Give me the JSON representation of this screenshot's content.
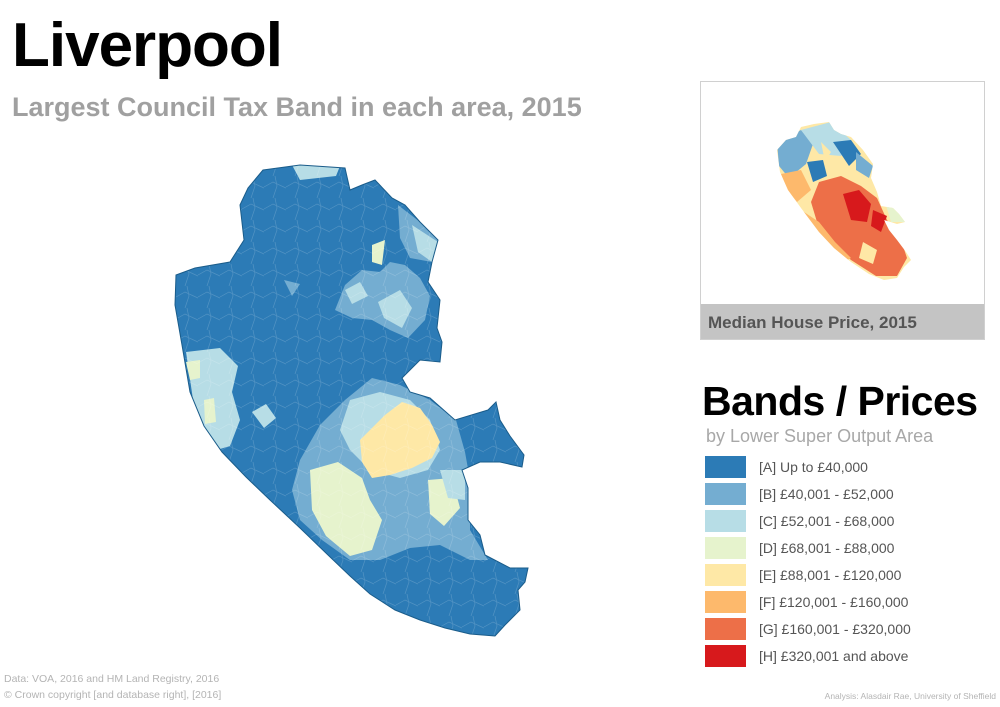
{
  "title": "Liverpool",
  "subtitle": "Largest Council Tax Band in each area, 2015",
  "inset": {
    "caption": "Median House Price, 2015"
  },
  "legend": {
    "title": "Bands / Prices",
    "subtitle": "by Lower Super Output Area",
    "items": [
      {
        "label": "[A] Up to £40,000",
        "color": "#2c7bb6"
      },
      {
        "label": "[B] £40,001 - £52,000",
        "color": "#74add1"
      },
      {
        "label": "[C] £52,001 - £68,000",
        "color": "#b7dde6"
      },
      {
        "label": "[D] £68,001 - £88,000",
        "color": "#e6f3cd"
      },
      {
        "label": "[E] £88,001 - £120,000",
        "color": "#fee8a6"
      },
      {
        "label": "[F] £120,001 - £160,000",
        "color": "#fdb96c"
      },
      {
        "label": "[G] £160,001 - £320,000",
        "color": "#ed6f48"
      },
      {
        "label": "[H] £320,001 and above",
        "color": "#d7191c"
      }
    ]
  },
  "source": {
    "line1": "Data: VOA, 2016 and HM Land Registry, 2016",
    "line2": "© Crown copyright [and database right], [2016]"
  },
  "credit": "Analysis: Alasdair Rae, University of Sheffield"
}
